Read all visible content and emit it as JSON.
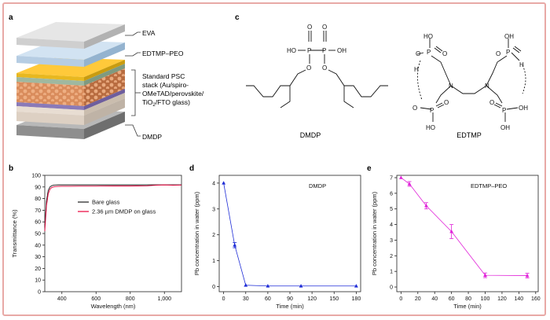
{
  "panels": {
    "a": {
      "label": "a",
      "layers": [
        "EVA",
        "EDTMP–PEO",
        "DMDP"
      ],
      "stack_label": [
        "Standard PSC",
        "stack (Au/spiro-",
        "OMeTAD/perovskite/",
        "TiO",
        "2",
        "/FTO glass)"
      ]
    },
    "c": {
      "label": "c",
      "molecules": [
        "DMDP",
        "EDTMP"
      ],
      "atoms": {
        "O": "O",
        "P": "P",
        "OH": "OH",
        "HO": "HO",
        "N": "N",
        "H": "H"
      }
    },
    "b": {
      "label": "b"
    },
    "d": {
      "label": "d"
    },
    "e": {
      "label": "e"
    }
  },
  "colors": {
    "bare_glass": "#1a1a1a",
    "dmdp_film": "#e8003a",
    "panel_d": "#1d2bd6",
    "panel_e": "#e020d8",
    "frame": "#e8a9a6"
  },
  "chart_data": [
    {
      "panel": "b",
      "type": "line",
      "xlabel": "Wavelength (nm)",
      "ylabel": "Transmittance (%)",
      "xlim": [
        300,
        1100
      ],
      "ylim": [
        0,
        100
      ],
      "xticks": [
        400,
        600,
        800,
        1000
      ],
      "xtick_labels": [
        "400",
        "600",
        "800",
        "1,000"
      ],
      "yticks": [
        0,
        10,
        20,
        30,
        40,
        50,
        60,
        70,
        80,
        90,
        100
      ],
      "legend": "center",
      "series": [
        {
          "name": "Bare glass",
          "x": [
            300,
            310,
            320,
            330,
            340,
            350,
            360,
            380,
            400,
            450,
            500,
            600,
            700,
            800,
            900,
            1000,
            1100
          ],
          "values": [
            55,
            78,
            87,
            90,
            91,
            91.5,
            91.7,
            91.8,
            91.8,
            91.8,
            91.8,
            91.8,
            91.8,
            91.8,
            91.8,
            91.8,
            91.8
          ]
        },
        {
          "name": "2.36 µm DMDP on glass",
          "x": [
            300,
            310,
            320,
            330,
            340,
            350,
            360,
            380,
            400,
            450,
            500,
            600,
            700,
            800,
            900,
            950,
            1000,
            1050,
            1100
          ],
          "values": [
            52,
            74,
            84,
            88,
            89.5,
            90,
            90.3,
            90.5,
            90.6,
            90.6,
            90.7,
            90.7,
            90.8,
            90.8,
            91,
            91.5,
            91.8,
            91.5,
            91.7
          ]
        }
      ]
    },
    {
      "panel": "d",
      "type": "line",
      "title": "DMDP",
      "xlabel": "Time (min)",
      "ylabel": "Pb concentration in water (ppm)",
      "xlim": [
        -6,
        186
      ],
      "ylim": [
        -0.2,
        4.3
      ],
      "xticks": [
        0,
        30,
        60,
        90,
        120,
        150,
        180
      ],
      "yticks": [
        0,
        1,
        2,
        3,
        4
      ],
      "series": [
        {
          "name": "DMDP",
          "x": [
            0,
            15,
            30,
            60,
            105,
            180
          ],
          "values": [
            4.0,
            1.6,
            0.05,
            0.02,
            0.02,
            0.02
          ],
          "errors": [
            0,
            0.1,
            0,
            0,
            0,
            0
          ]
        }
      ]
    },
    {
      "panel": "e",
      "type": "line",
      "title": "EDTMP–PEO",
      "xlabel": "Time (min)",
      "ylabel": "Pb concentration in water (ppm)",
      "xlim": [
        -5,
        163
      ],
      "ylim": [
        -0.3,
        7.15
      ],
      "xticks": [
        0,
        20,
        40,
        60,
        80,
        100,
        120,
        140,
        160
      ],
      "yticks": [
        0,
        1,
        2,
        3,
        4,
        5,
        6,
        7
      ],
      "series": [
        {
          "name": "EDTMP–PEO",
          "x": [
            0,
            10,
            30,
            60,
            100,
            150
          ],
          "values": [
            7.0,
            6.6,
            5.2,
            3.55,
            0.75,
            0.73
          ],
          "errors": [
            0,
            0.15,
            0.2,
            0.45,
            0.15,
            0.15
          ]
        }
      ]
    }
  ]
}
